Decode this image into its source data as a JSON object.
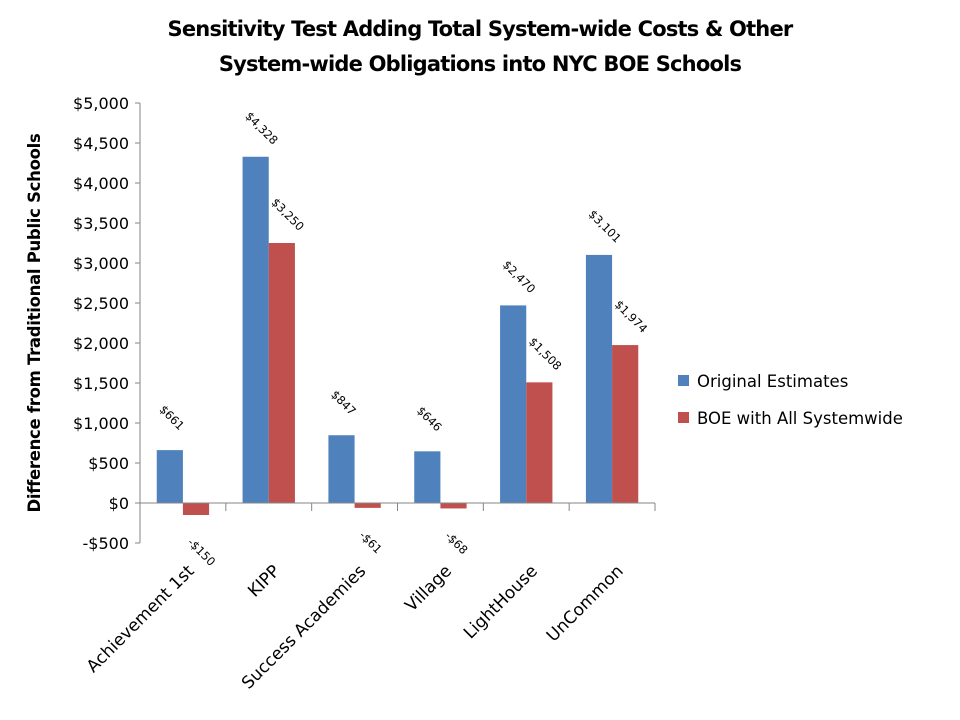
{
  "chart_data": {
    "type": "bar",
    "title_lines": [
      "Sensitivity Test Adding Total System-wide Costs & Other",
      "System-wide Obligations into NYC BOE Schools"
    ],
    "xlabel": "",
    "ylabel": "Difference from Traditional Public Schools",
    "ylim": [
      -500,
      5000
    ],
    "yticks": [
      -500,
      0,
      500,
      1000,
      1500,
      2000,
      2500,
      3000,
      3500,
      4000,
      4500,
      5000
    ],
    "ytick_labels": [
      "-$500",
      "$0",
      "$500",
      "$1,000",
      "$1,500",
      "$2,000",
      "$2,500",
      "$3,000",
      "$3,500",
      "$4,000",
      "$4,500",
      "$5,000"
    ],
    "grid": false,
    "legend_position": "right",
    "categories": [
      "Achievement 1st",
      "KIPP",
      "Success Academies",
      "Village",
      "LightHouse",
      "UnCommon"
    ],
    "series": [
      {
        "name": "Original Estimates",
        "color": "#4F81BD",
        "values": [
          661,
          4328,
          847,
          646,
          2470,
          3101
        ],
        "data_labels": [
          "$661",
          "$4,328",
          "$847",
          "$646",
          "$2,470",
          "$3,101"
        ]
      },
      {
        "name": "BOE with All Systemwide",
        "color": "#C0504D",
        "values": [
          -150,
          3250,
          -61,
          -68,
          1508,
          1974
        ],
        "data_labels": [
          "-$150",
          "$3,250",
          "-$61",
          "-$68",
          "$1,508",
          "$1,974"
        ]
      }
    ]
  }
}
